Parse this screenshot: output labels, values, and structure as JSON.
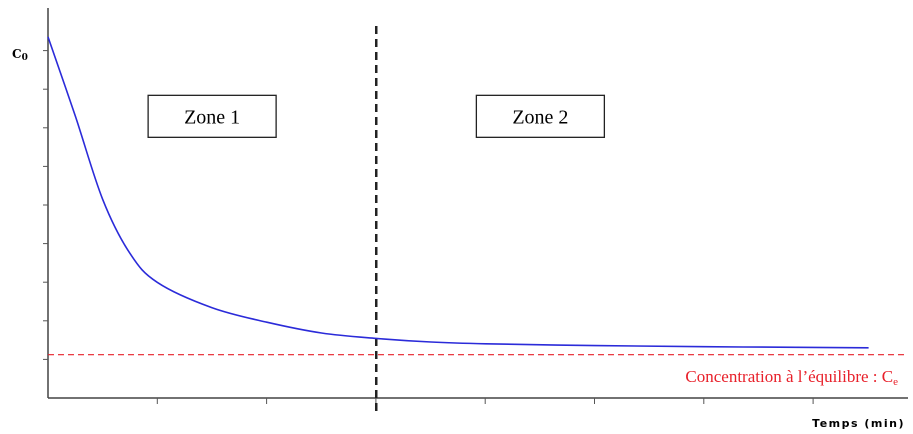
{
  "chart_data": {
    "type": "line",
    "ylabel": "C",
    "ylabel_sub": "0",
    "xlabel": "Temps (min)",
    "grid": false,
    "x_ticks": 8,
    "y_ticks": 9,
    "series": [
      {
        "values": [
          [
            0,
            1.0
          ],
          [
            0.25,
            0.78
          ],
          [
            0.5,
            0.55
          ],
          [
            0.75,
            0.4
          ],
          [
            1.0,
            0.32
          ],
          [
            1.5,
            0.25
          ],
          [
            2.0,
            0.21
          ],
          [
            2.5,
            0.18
          ],
          [
            3.0,
            0.165
          ],
          [
            3.5,
            0.155
          ],
          [
            4.0,
            0.15
          ],
          [
            5.0,
            0.145
          ],
          [
            6.0,
            0.142
          ],
          [
            7.0,
            0.14
          ],
          [
            7.5,
            0.139
          ]
        ]
      }
    ],
    "equilibrium": {
      "value": 0.12,
      "label": "Concentration à l’équilibre : C",
      "label_sub": "e"
    },
    "divider_x": 3.0,
    "zones": [
      {
        "label": "Zone 1",
        "x": 1.5,
        "y": 0.78
      },
      {
        "label": "Zone 2",
        "x": 4.5,
        "y": 0.78
      }
    ],
    "xlim": [
      0,
      7.86
    ],
    "ylim": [
      0,
      1.08
    ]
  },
  "colors": {
    "curve": "#2b2bd9",
    "equilibrium": "#e8202a",
    "axis": "#444444"
  }
}
